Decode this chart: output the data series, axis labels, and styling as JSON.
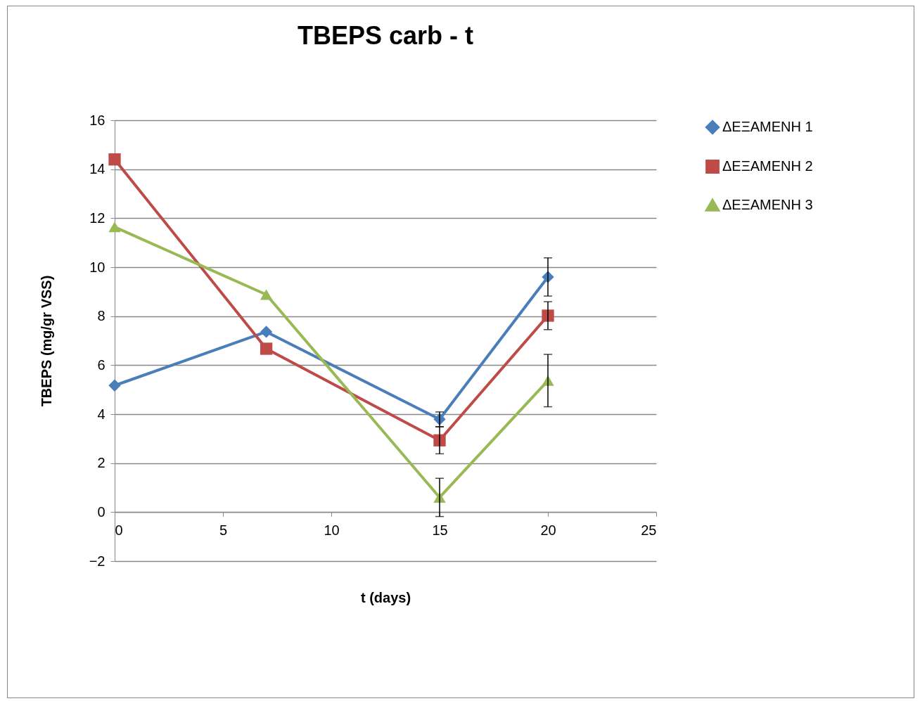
{
  "chart_data": {
    "type": "line",
    "title": "TBEPS carb - t",
    "xlabel": "t (days)",
    "ylabel": "TBEPS (mg/gr VSS)",
    "x": [
      0,
      7,
      15,
      20
    ],
    "series": [
      {
        "name": "ΔΕΞΑΜΕΝΗ 1",
        "color": "#4a7ebb",
        "marker": "diamond",
        "values": [
          5.17,
          7.36,
          3.79,
          9.6
        ],
        "errors": [
          null,
          null,
          0.3,
          0.78
        ]
      },
      {
        "name": "ΔΕΞΑΜΕΝΗ 2",
        "color": "#be4b48",
        "marker": "square",
        "values": [
          14.4,
          6.67,
          2.93,
          8.02
        ],
        "errors": [
          null,
          null,
          0.55,
          0.57
        ]
      },
      {
        "name": "ΔΕΞΑΜΕΝΗ 3",
        "color": "#98b954",
        "marker": "triangle",
        "values": [
          11.64,
          8.88,
          0.6,
          5.37
        ],
        "errors": [
          null,
          null,
          0.78,
          1.07
        ]
      }
    ],
    "xlim": [
      0,
      25
    ],
    "xticks": [
      0,
      5,
      10,
      15,
      20,
      25
    ],
    "ylim": [
      -2,
      16
    ],
    "yticks": [
      -2,
      0,
      2,
      4,
      6,
      8,
      10,
      12,
      14,
      16
    ],
    "grid": "y",
    "legend": "right"
  }
}
